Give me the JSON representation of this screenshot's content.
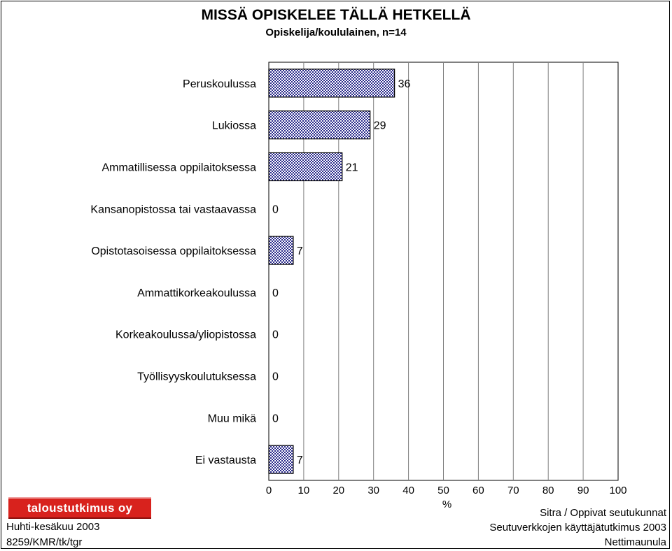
{
  "chart_data": {
    "type": "bar",
    "orientation": "horizontal",
    "title": "MISSÄ OPISKELEE TÄLLÄ HETKELLÄ",
    "subtitle": "Opiskelija/koululainen, n=14",
    "categories": [
      "Peruskoulussa",
      "Lukiossa",
      "Ammatillisessa oppilaitoksessa",
      "Kansanopistossa tai vastaavassa",
      "Opistotasoisessa oppilaitoksessa",
      "Ammattikorkeakoulussa",
      "Korkeakoulussa/yliopistossa",
      "Työllisyyskoulutuksessa",
      "Muu mikä",
      "Ei vastausta"
    ],
    "values": [
      36,
      29,
      21,
      0,
      7,
      0,
      0,
      0,
      0,
      7
    ],
    "xlabel": "%",
    "xlim": [
      0,
      100
    ],
    "xticks": [
      "0",
      "10",
      "20",
      "30",
      "40",
      "50",
      "60",
      "70",
      "80",
      "90",
      "100"
    ],
    "grid": true,
    "bar_color": "#2a2a8c",
    "bar_fill": "checkered"
  },
  "logo": {
    "text": "taloustutkimus oy",
    "color": "#d8221d"
  },
  "footer": {
    "left": [
      "Huhti-kesäkuu 2003",
      "8259/KMR/tk/tgr"
    ],
    "right": [
      "Sitra / Oppivat seutukunnat",
      "Seutuverkkojen käyttäjätutkimus 2003",
      "Nettimaunula"
    ]
  }
}
